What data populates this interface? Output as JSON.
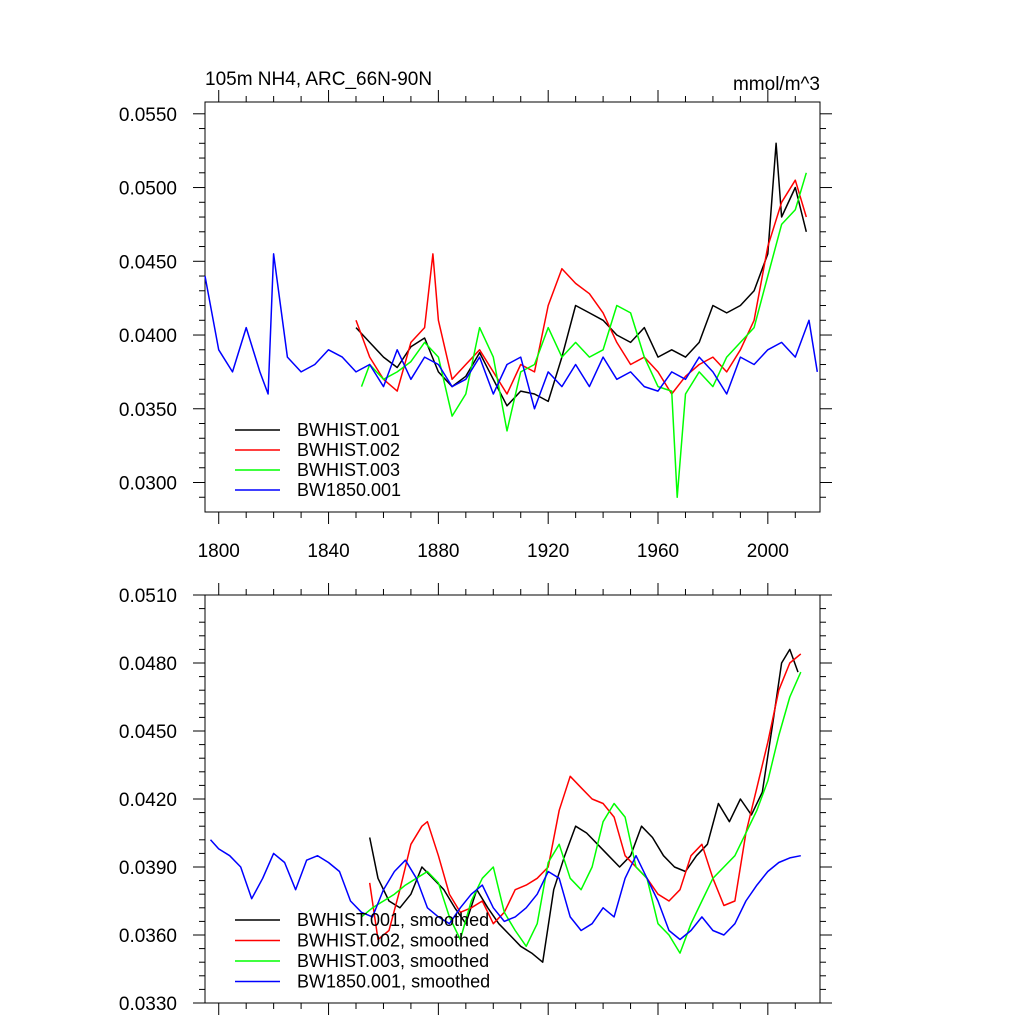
{
  "chart_data": [
    {
      "type": "line",
      "title": "105m NH4, ARC_66N-90N",
      "units": "mmol/m^3",
      "xlim": [
        1795,
        2019
      ],
      "ylim": [
        0.028,
        0.0558
      ],
      "x_ticks": [
        1800,
        1840,
        1880,
        1920,
        1960,
        2000
      ],
      "x_tick_labels": [
        "1800",
        "1840",
        "1880",
        "1920",
        "1960",
        "2000"
      ],
      "y_ticks": [
        0.03,
        0.035,
        0.04,
        0.045,
        0.05,
        0.055
      ],
      "y_tick_labels": [
        "0.0300",
        "0.0350",
        "0.0400",
        "0.0450",
        "0.0500",
        "0.0550"
      ],
      "legend_position": "bottom-left",
      "series": [
        {
          "name": "BWHIST.001",
          "color": "#000000",
          "x": [
            1850,
            1855,
            1860,
            1865,
            1870,
            1875,
            1880,
            1885,
            1890,
            1895,
            1900,
            1905,
            1910,
            1915,
            1920,
            1925,
            1930,
            1935,
            1940,
            1945,
            1950,
            1955,
            1960,
            1965,
            1970,
            1975,
            1980,
            1985,
            1990,
            1995,
            2000,
            2003,
            2005,
            2010,
            2014
          ],
          "y": [
            0.0405,
            0.0395,
            0.0385,
            0.0378,
            0.0392,
            0.0398,
            0.0375,
            0.0365,
            0.0372,
            0.0388,
            0.037,
            0.0352,
            0.0362,
            0.036,
            0.0355,
            0.0385,
            0.042,
            0.0415,
            0.041,
            0.04,
            0.0395,
            0.0405,
            0.0385,
            0.039,
            0.0385,
            0.0395,
            0.042,
            0.0415,
            0.042,
            0.043,
            0.0455,
            0.053,
            0.048,
            0.05,
            0.047
          ]
        },
        {
          "name": "BWHIST.002",
          "color": "#ff0000",
          "x": [
            1850,
            1855,
            1860,
            1865,
            1870,
            1875,
            1878,
            1880,
            1885,
            1890,
            1895,
            1900,
            1905,
            1910,
            1915,
            1920,
            1925,
            1930,
            1935,
            1940,
            1945,
            1950,
            1955,
            1960,
            1965,
            1970,
            1975,
            1980,
            1985,
            1990,
            1995,
            2000,
            2005,
            2010,
            2014
          ],
          "y": [
            0.041,
            0.0385,
            0.037,
            0.0362,
            0.0395,
            0.0405,
            0.0455,
            0.041,
            0.037,
            0.038,
            0.039,
            0.0375,
            0.036,
            0.038,
            0.0375,
            0.042,
            0.0445,
            0.0435,
            0.0428,
            0.0415,
            0.0395,
            0.038,
            0.0385,
            0.0375,
            0.036,
            0.0372,
            0.038,
            0.0385,
            0.0375,
            0.039,
            0.041,
            0.046,
            0.049,
            0.0505,
            0.048
          ]
        },
        {
          "name": "BWHIST.003",
          "color": "#00ff00",
          "x": [
            1852,
            1855,
            1860,
            1865,
            1870,
            1875,
            1880,
            1885,
            1890,
            1895,
            1900,
            1905,
            1910,
            1915,
            1920,
            1925,
            1930,
            1935,
            1940,
            1945,
            1950,
            1955,
            1960,
            1965,
            1967,
            1970,
            1975,
            1980,
            1985,
            1990,
            1995,
            2000,
            2005,
            2010,
            2014
          ],
          "y": [
            0.0365,
            0.038,
            0.037,
            0.0375,
            0.0382,
            0.0395,
            0.0385,
            0.0345,
            0.036,
            0.0405,
            0.0385,
            0.0335,
            0.0375,
            0.038,
            0.0405,
            0.0385,
            0.0395,
            0.0385,
            0.039,
            0.042,
            0.0415,
            0.0385,
            0.0365,
            0.0362,
            0.029,
            0.036,
            0.0375,
            0.0365,
            0.0385,
            0.0395,
            0.0405,
            0.044,
            0.0475,
            0.0485,
            0.051
          ]
        },
        {
          "name": "BW1850.001",
          "color": "#0000ff",
          "x": [
            1795,
            1800,
            1805,
            1810,
            1815,
            1818,
            1820,
            1825,
            1830,
            1835,
            1840,
            1845,
            1850,
            1855,
            1860,
            1865,
            1870,
            1875,
            1880,
            1885,
            1890,
            1895,
            1900,
            1905,
            1910,
            1915,
            1920,
            1925,
            1930,
            1935,
            1940,
            1945,
            1950,
            1955,
            1960,
            1965,
            1970,
            1975,
            1980,
            1985,
            1990,
            1995,
            2000,
            2005,
            2010,
            2015,
            2018
          ],
          "y": [
            0.044,
            0.039,
            0.0375,
            0.0405,
            0.0375,
            0.036,
            0.0455,
            0.0385,
            0.0375,
            0.038,
            0.039,
            0.0385,
            0.0375,
            0.038,
            0.0365,
            0.039,
            0.037,
            0.0385,
            0.038,
            0.0365,
            0.037,
            0.0385,
            0.036,
            0.038,
            0.0385,
            0.035,
            0.0375,
            0.0365,
            0.038,
            0.0365,
            0.0385,
            0.037,
            0.0375,
            0.0365,
            0.0362,
            0.0375,
            0.037,
            0.0385,
            0.0375,
            0.036,
            0.0385,
            0.038,
            0.039,
            0.0395,
            0.0385,
            0.041,
            0.0375
          ]
        }
      ]
    },
    {
      "type": "line",
      "title": "",
      "units": "",
      "xlim": [
        1795,
        2019
      ],
      "ylim": [
        0.033,
        0.051
      ],
      "x_ticks": [
        1800,
        1840,
        1880,
        1920,
        1960,
        2000
      ],
      "x_tick_labels": [],
      "y_ticks": [
        0.033,
        0.036,
        0.039,
        0.042,
        0.045,
        0.048,
        0.051
      ],
      "y_tick_labels": [
        "0.0330",
        "0.0360",
        "0.0390",
        "0.0420",
        "0.0450",
        "0.0480",
        "0.0510"
      ],
      "legend_position": "bottom-left",
      "series": [
        {
          "name": "BWHIST.001, smoothed",
          "color": "#000000",
          "x": [
            1855,
            1858,
            1862,
            1866,
            1870,
            1874,
            1878,
            1882,
            1886,
            1890,
            1894,
            1898,
            1902,
            1906,
            1910,
            1914,
            1918,
            1922,
            1926,
            1930,
            1934,
            1938,
            1942,
            1946,
            1950,
            1954,
            1958,
            1962,
            1966,
            1970,
            1974,
            1978,
            1982,
            1986,
            1990,
            1994,
            1998,
            2002,
            2005,
            2008,
            2011
          ],
          "y": [
            0.0403,
            0.0385,
            0.0375,
            0.0372,
            0.0378,
            0.039,
            0.0385,
            0.038,
            0.0372,
            0.0365,
            0.038,
            0.0372,
            0.0365,
            0.036,
            0.0355,
            0.0352,
            0.0348,
            0.038,
            0.0395,
            0.0408,
            0.0405,
            0.04,
            0.0395,
            0.039,
            0.0395,
            0.0408,
            0.0403,
            0.0395,
            0.039,
            0.0388,
            0.0395,
            0.04,
            0.0418,
            0.041,
            0.042,
            0.0413,
            0.0423,
            0.0455,
            0.048,
            0.0486,
            0.0476
          ]
        },
        {
          "name": "BWHIST.002, smoothed",
          "color": "#ff0000",
          "x": [
            1855,
            1858,
            1862,
            1866,
            1870,
            1874,
            1876,
            1880,
            1884,
            1888,
            1892,
            1896,
            1900,
            1904,
            1908,
            1912,
            1916,
            1920,
            1924,
            1928,
            1932,
            1936,
            1940,
            1944,
            1948,
            1952,
            1956,
            1960,
            1964,
            1968,
            1972,
            1976,
            1980,
            1984,
            1988,
            1992,
            1996,
            2000,
            2004,
            2008,
            2012
          ],
          "y": [
            0.0383,
            0.0358,
            0.0362,
            0.038,
            0.04,
            0.0408,
            0.041,
            0.0395,
            0.0378,
            0.037,
            0.0372,
            0.0375,
            0.0365,
            0.037,
            0.038,
            0.0382,
            0.0385,
            0.039,
            0.0415,
            0.043,
            0.0425,
            0.042,
            0.0418,
            0.0412,
            0.0395,
            0.039,
            0.0385,
            0.0378,
            0.0375,
            0.038,
            0.0395,
            0.04,
            0.0385,
            0.0373,
            0.0375,
            0.0405,
            0.0425,
            0.0445,
            0.0468,
            0.048,
            0.0484
          ]
        },
        {
          "name": "BWHIST.003, smoothed",
          "color": "#00ff00",
          "x": [
            1852,
            1856,
            1860,
            1864,
            1868,
            1872,
            1876,
            1880,
            1884,
            1888,
            1892,
            1896,
            1900,
            1904,
            1908,
            1912,
            1916,
            1920,
            1924,
            1928,
            1932,
            1936,
            1940,
            1944,
            1948,
            1952,
            1956,
            1960,
            1964,
            1968,
            1972,
            1976,
            1980,
            1984,
            1988,
            1992,
            1996,
            2000,
            2004,
            2008,
            2012
          ],
          "y": [
            0.0368,
            0.0372,
            0.0375,
            0.0378,
            0.0382,
            0.0385,
            0.0388,
            0.0383,
            0.0368,
            0.0358,
            0.0375,
            0.0385,
            0.039,
            0.037,
            0.0362,
            0.0355,
            0.0365,
            0.0392,
            0.04,
            0.0385,
            0.038,
            0.039,
            0.041,
            0.0418,
            0.0412,
            0.039,
            0.0385,
            0.0365,
            0.036,
            0.0352,
            0.0365,
            0.0375,
            0.0385,
            0.039,
            0.0395,
            0.0405,
            0.0415,
            0.0428,
            0.0448,
            0.0465,
            0.0476
          ]
        },
        {
          "name": "BW1850.001, smoothed",
          "color": "#0000ff",
          "x": [
            1797,
            1800,
            1804,
            1808,
            1812,
            1816,
            1820,
            1824,
            1828,
            1832,
            1836,
            1840,
            1844,
            1848,
            1852,
            1856,
            1860,
            1864,
            1868,
            1872,
            1876,
            1880,
            1884,
            1888,
            1892,
            1896,
            1900,
            1904,
            1908,
            1912,
            1916,
            1920,
            1924,
            1928,
            1932,
            1936,
            1940,
            1944,
            1948,
            1952,
            1956,
            1960,
            1964,
            1968,
            1972,
            1976,
            1980,
            1984,
            1988,
            1992,
            1996,
            2000,
            2004,
            2008,
            2012
          ],
          "y": [
            0.0402,
            0.0398,
            0.0395,
            0.039,
            0.0376,
            0.0385,
            0.0396,
            0.0392,
            0.038,
            0.0393,
            0.0395,
            0.0392,
            0.0388,
            0.0375,
            0.037,
            0.0368,
            0.038,
            0.0388,
            0.0393,
            0.0385,
            0.0372,
            0.0368,
            0.0365,
            0.0372,
            0.0378,
            0.0382,
            0.0372,
            0.0366,
            0.0368,
            0.0372,
            0.0378,
            0.0388,
            0.0385,
            0.0368,
            0.0362,
            0.0365,
            0.0372,
            0.0368,
            0.0385,
            0.0395,
            0.0385,
            0.0375,
            0.0362,
            0.0358,
            0.0362,
            0.0368,
            0.0362,
            0.036,
            0.0365,
            0.0375,
            0.0382,
            0.0388,
            0.0392,
            0.0394,
            0.0395
          ]
        }
      ]
    }
  ]
}
